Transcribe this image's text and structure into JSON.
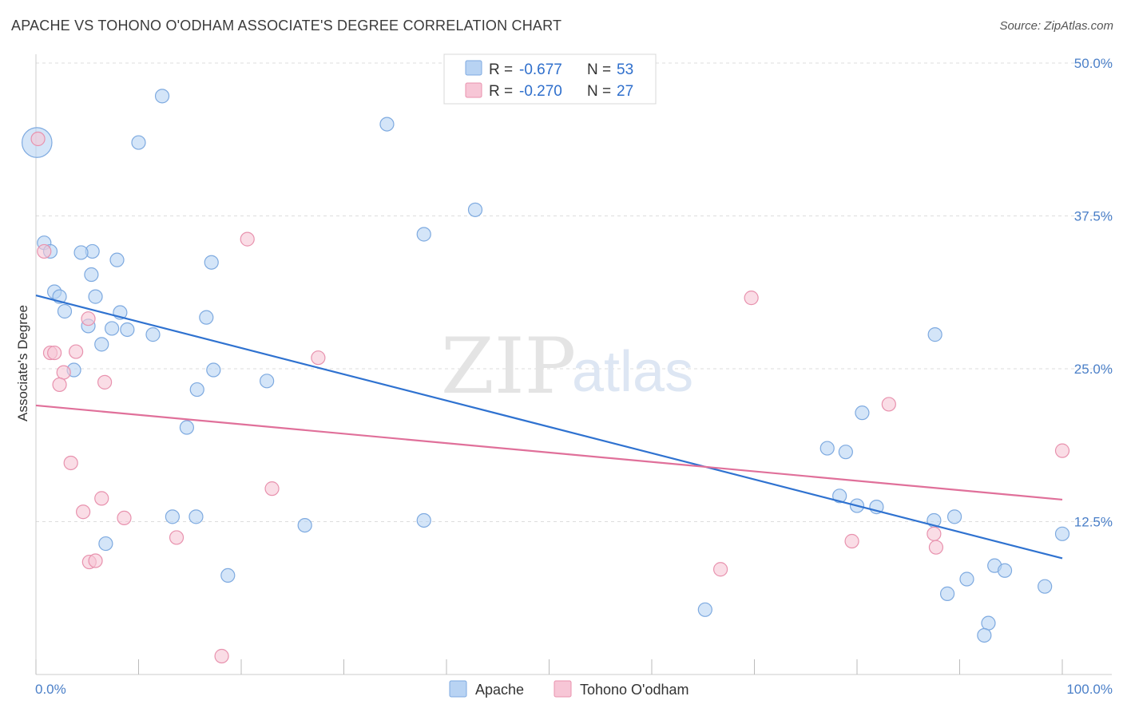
{
  "title": "APACHE VS TOHONO O'ODHAM ASSOCIATE'S DEGREE CORRELATION CHART",
  "source": "Source: ZipAtlas.com",
  "watermark": {
    "zip": "ZIP",
    "atlas": "atlas"
  },
  "colors": {
    "apache_fill": "#b8d3f3",
    "apache_stroke": "#7eaae0",
    "apache_line": "#2f72d0",
    "tohono_fill": "#f7c6d6",
    "tohono_stroke": "#e892ae",
    "tohono_line": "#e0709a",
    "grid": "#dddddd"
  },
  "legend": {
    "rows": [
      {
        "r_label": "R = ",
        "r_value": "-0.677",
        "n_label": "N = ",
        "n_value": "53"
      },
      {
        "r_label": "R = ",
        "r_value": "-0.270",
        "n_label": "N = ",
        "n_value": "27"
      }
    ]
  },
  "bottom_legend": [
    "Apache",
    "Tohono O'odham"
  ],
  "chart_data": {
    "type": "scatter",
    "ylabel": "Associate's Degree",
    "xlim": [
      0,
      100
    ],
    "ylim": [
      0,
      50
    ],
    "x_tick_labels": [
      "0.0%",
      "100.0%"
    ],
    "y_ticks": [
      12.5,
      25.0,
      37.5,
      50.0
    ],
    "y_tick_labels": [
      "12.5%",
      "25.0%",
      "37.5%",
      "50.0%"
    ],
    "grid": true,
    "series": [
      {
        "name": "Apache",
        "trend": {
          "x": [
            0,
            100
          ],
          "y": [
            31.0,
            9.5
          ]
        },
        "points": [
          [
            0.1,
            43.5,
            2.2
          ],
          [
            12.3,
            47.3,
            1
          ],
          [
            10,
            43.5,
            1
          ],
          [
            34.2,
            45.0,
            1
          ],
          [
            42.8,
            38.0,
            1
          ],
          [
            37.8,
            36.0,
            1
          ],
          [
            0.8,
            35.3,
            1
          ],
          [
            1.4,
            34.6,
            1
          ],
          [
            5.5,
            34.6,
            1
          ],
          [
            4.4,
            34.5,
            1
          ],
          [
            7.9,
            33.9,
            1
          ],
          [
            17.1,
            33.7,
            1
          ],
          [
            5.4,
            32.7,
            1
          ],
          [
            1.8,
            31.3,
            1
          ],
          [
            2.3,
            30.9,
            1
          ],
          [
            5.8,
            30.9,
            1
          ],
          [
            2.8,
            29.7,
            1
          ],
          [
            8.2,
            29.6,
            1
          ],
          [
            16.6,
            29.2,
            1
          ],
          [
            5.1,
            28.5,
            1
          ],
          [
            7.4,
            28.3,
            1
          ],
          [
            8.9,
            28.2,
            1
          ],
          [
            11.4,
            27.8,
            1
          ],
          [
            6.4,
            27.0,
            1
          ],
          [
            87.6,
            27.8,
            1
          ],
          [
            3.7,
            24.9,
            1
          ],
          [
            17.3,
            24.9,
            1
          ],
          [
            22.5,
            24.0,
            1
          ],
          [
            15.7,
            23.3,
            1
          ],
          [
            14.7,
            20.2,
            1
          ],
          [
            80.5,
            21.4,
            1
          ],
          [
            77.1,
            18.5,
            1
          ],
          [
            78.9,
            18.2,
            1
          ],
          [
            78.3,
            14.6,
            1
          ],
          [
            80.0,
            13.8,
            1
          ],
          [
            81.9,
            13.7,
            1
          ],
          [
            13.3,
            12.9,
            1
          ],
          [
            15.6,
            12.9,
            1
          ],
          [
            26.2,
            12.2,
            1
          ],
          [
            37.8,
            12.6,
            1
          ],
          [
            87.5,
            12.6,
            1
          ],
          [
            89.5,
            12.9,
            1
          ],
          [
            6.8,
            10.7,
            1
          ],
          [
            100,
            11.5,
            1
          ],
          [
            18.7,
            8.1,
            1
          ],
          [
            93.4,
            8.9,
            1
          ],
          [
            94.4,
            8.5,
            1
          ],
          [
            90.7,
            7.8,
            1
          ],
          [
            88.8,
            6.6,
            1
          ],
          [
            98.3,
            7.2,
            1
          ],
          [
            65.2,
            5.3,
            1
          ],
          [
            92.8,
            4.2,
            1
          ],
          [
            92.4,
            3.2,
            1
          ]
        ]
      },
      {
        "name": "Tohono O'odham",
        "trend": {
          "x": [
            0,
            100
          ],
          "y": [
            22.0,
            14.3
          ]
        },
        "points": [
          [
            0.2,
            43.8,
            1
          ],
          [
            0.8,
            34.6,
            1
          ],
          [
            20.6,
            35.6,
            1
          ],
          [
            69.7,
            30.8,
            1
          ],
          [
            5.1,
            29.1,
            1
          ],
          [
            1.4,
            26.3,
            1
          ],
          [
            1.8,
            26.3,
            1
          ],
          [
            3.9,
            26.4,
            1
          ],
          [
            27.5,
            25.9,
            1
          ],
          [
            2.7,
            24.7,
            1
          ],
          [
            2.3,
            23.7,
            1
          ],
          [
            6.7,
            23.9,
            1
          ],
          [
            83.1,
            22.1,
            1
          ],
          [
            100,
            18.3,
            1
          ],
          [
            3.4,
            17.3,
            1
          ],
          [
            23.0,
            15.2,
            1
          ],
          [
            6.4,
            14.4,
            1
          ],
          [
            4.6,
            13.3,
            1
          ],
          [
            8.6,
            12.8,
            1
          ],
          [
            13.7,
            11.2,
            1
          ],
          [
            87.5,
            11.5,
            1
          ],
          [
            79.5,
            10.9,
            1
          ],
          [
            87.7,
            10.4,
            1
          ],
          [
            5.2,
            9.2,
            1
          ],
          [
            5.8,
            9.3,
            1
          ],
          [
            66.7,
            8.6,
            1
          ],
          [
            18.1,
            1.5,
            1
          ]
        ]
      }
    ]
  }
}
